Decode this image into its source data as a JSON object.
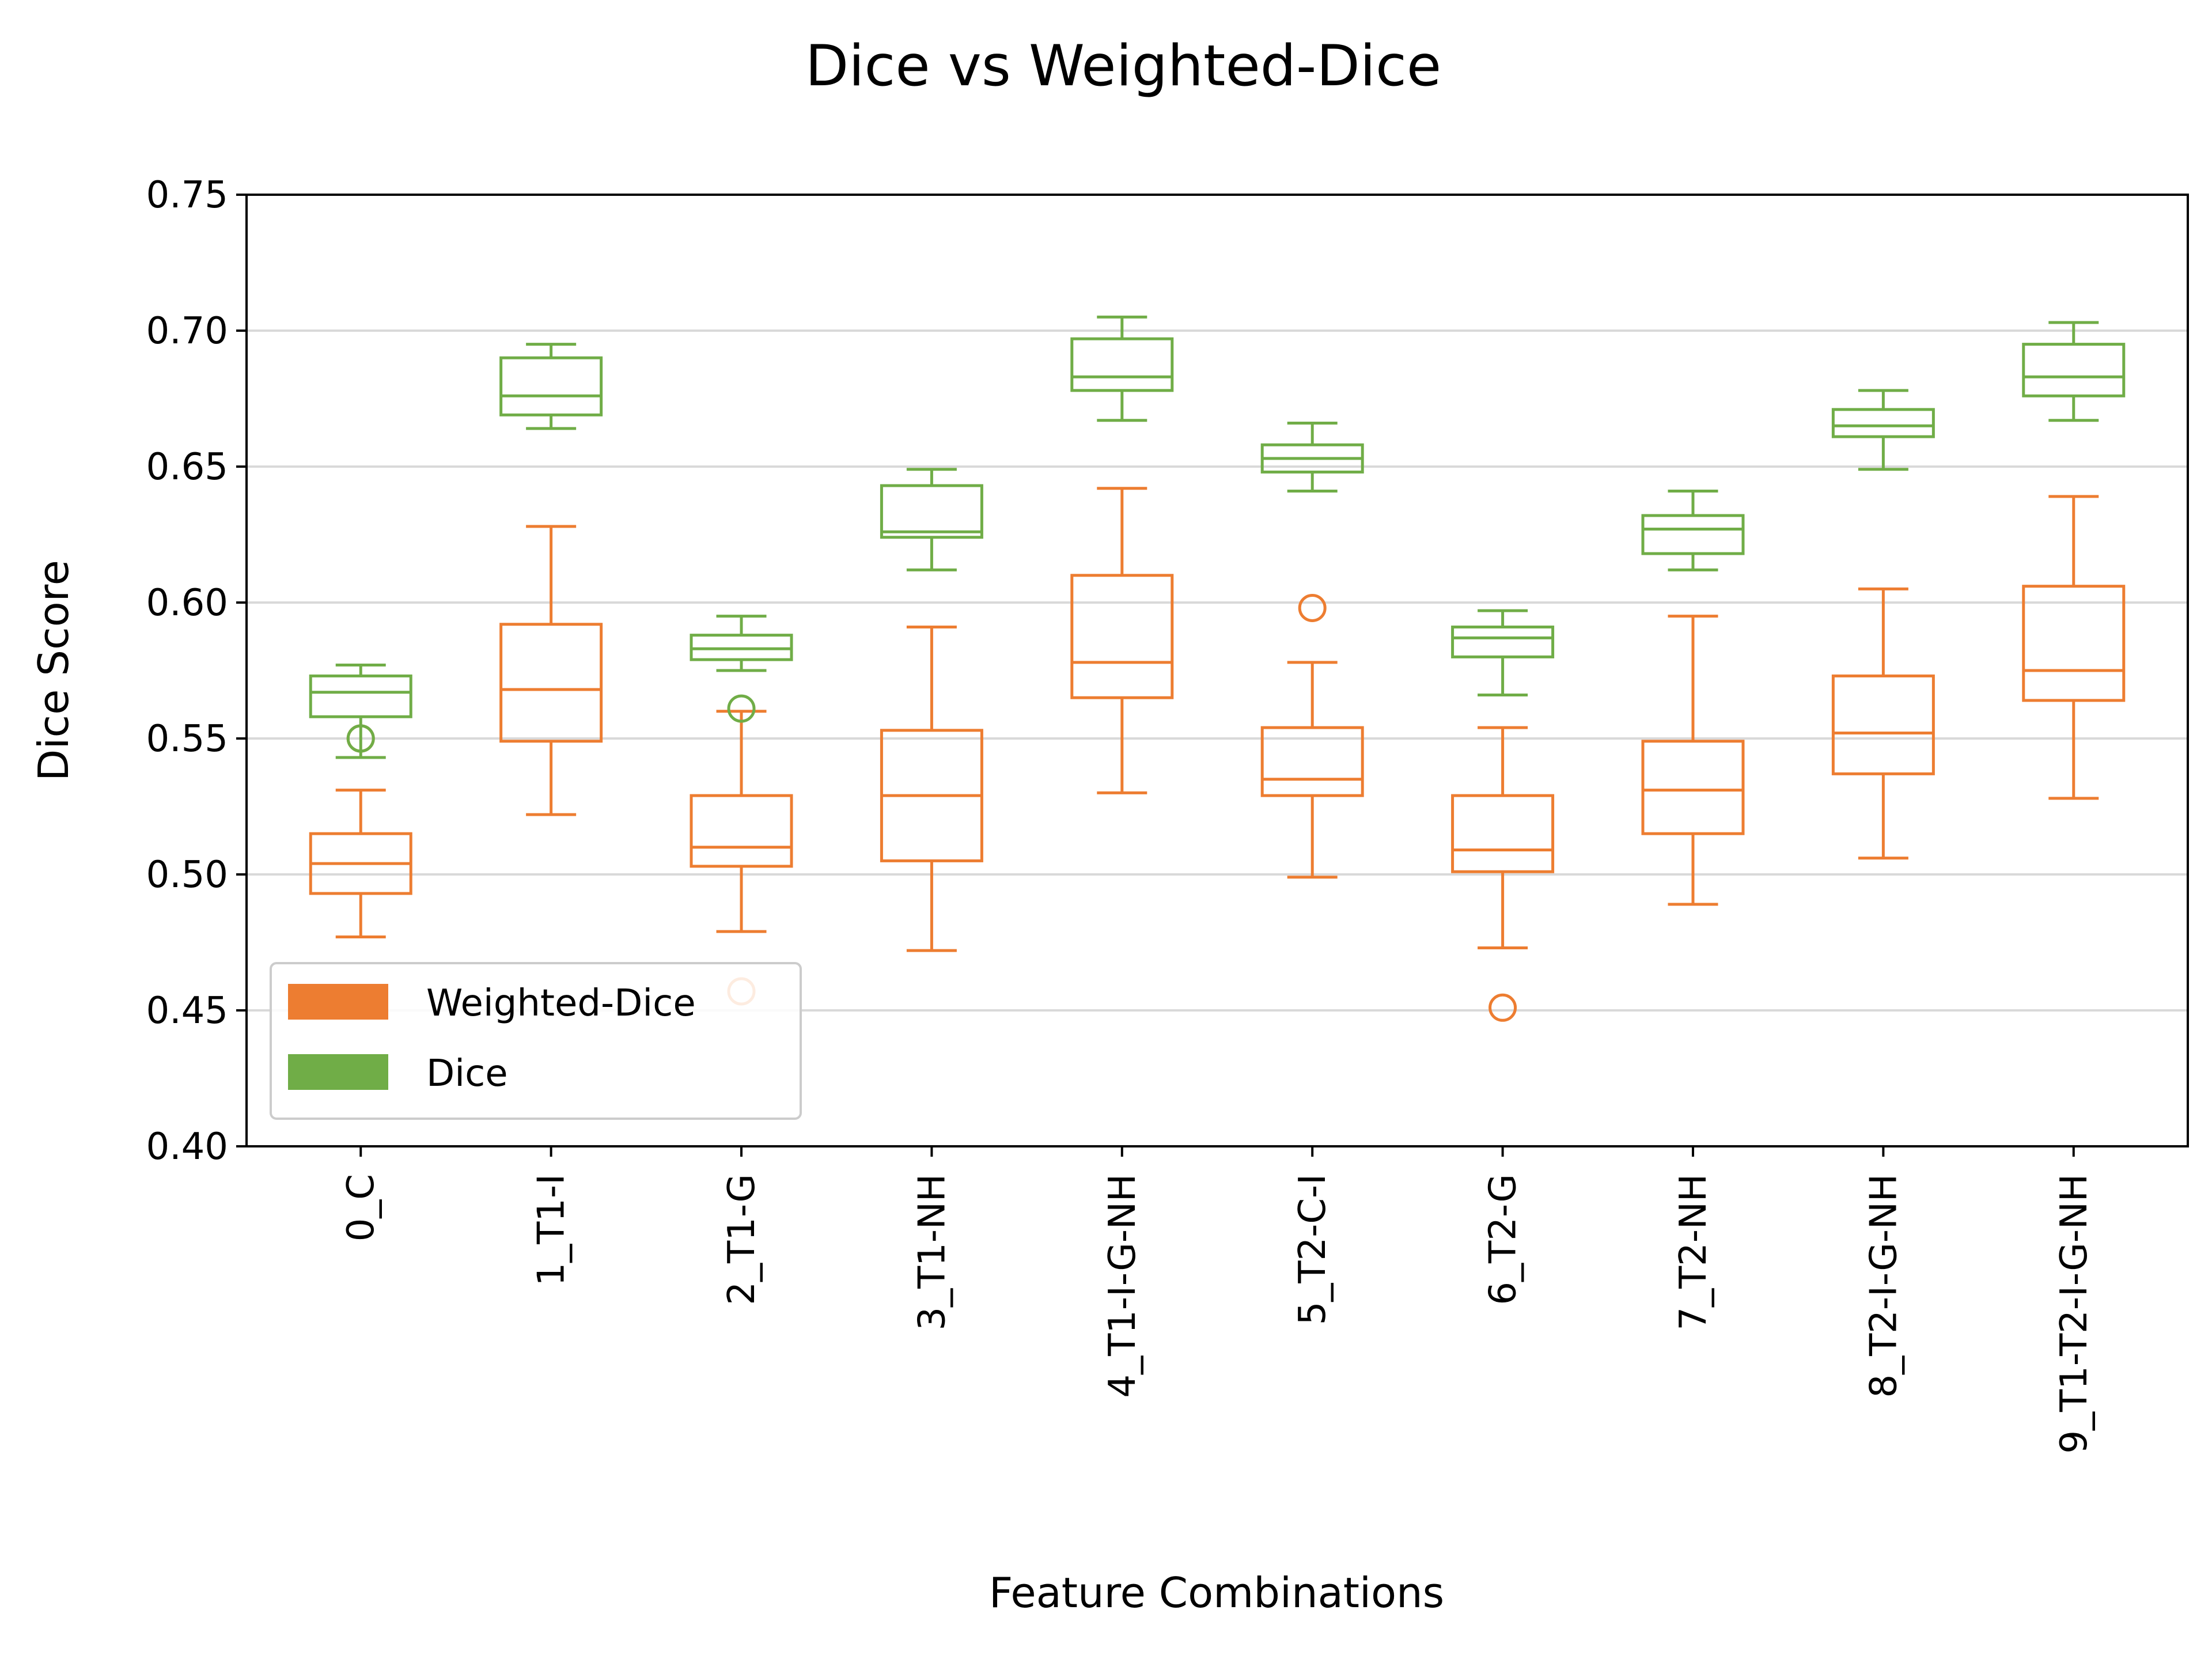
{
  "chart_data": {
    "type": "boxplot",
    "title": "Dice vs Weighted-Dice",
    "xlabel": "Feature Combinations",
    "ylabel": "Dice Score",
    "ylim": [
      0.4,
      0.75
    ],
    "yticks": [
      "0.40",
      "0.45",
      "0.50",
      "0.55",
      "0.60",
      "0.65",
      "0.70",
      "0.75"
    ],
    "grid": "horizontal",
    "legend_position": "lower-left",
    "categories": [
      "0_C",
      "1_T1-I",
      "2_T1-G",
      "3_T1-NH",
      "4_T1-I-G-NH",
      "5_T2-C-I",
      "6_T2-G",
      "7_T2-NH",
      "8_T2-I-G-NH",
      "9_T1-T2-I-G-NH"
    ],
    "series": [
      {
        "name": "Weighted-Dice",
        "color": "#ed7d31",
        "boxes": [
          {
            "whislo": 0.477,
            "q1": 0.493,
            "med": 0.504,
            "q3": 0.515,
            "whishi": 0.531,
            "fliers": [
              0.55
            ]
          },
          {
            "whislo": 0.522,
            "q1": 0.549,
            "med": 0.568,
            "q3": 0.592,
            "whishi": 0.628,
            "fliers": []
          },
          {
            "whislo": 0.479,
            "q1": 0.503,
            "med": 0.51,
            "q3": 0.529,
            "whishi": 0.56,
            "fliers": [
              0.457
            ]
          },
          {
            "whislo": 0.472,
            "q1": 0.505,
            "med": 0.529,
            "q3": 0.553,
            "whishi": 0.591,
            "fliers": []
          },
          {
            "whislo": 0.53,
            "q1": 0.565,
            "med": 0.578,
            "q3": 0.61,
            "whishi": 0.642,
            "fliers": []
          },
          {
            "whislo": 0.499,
            "q1": 0.529,
            "med": 0.535,
            "q3": 0.554,
            "whishi": 0.578,
            "fliers": [
              0.598
            ]
          },
          {
            "whislo": 0.473,
            "q1": 0.501,
            "med": 0.509,
            "q3": 0.529,
            "whishi": 0.554,
            "fliers": [
              0.451
            ]
          },
          {
            "whislo": 0.489,
            "q1": 0.515,
            "med": 0.531,
            "q3": 0.549,
            "whishi": 0.595,
            "fliers": []
          },
          {
            "whislo": 0.506,
            "q1": 0.537,
            "med": 0.552,
            "q3": 0.573,
            "whishi": 0.605,
            "fliers": []
          },
          {
            "whislo": 0.528,
            "q1": 0.564,
            "med": 0.575,
            "q3": 0.606,
            "whishi": 0.639,
            "fliers": []
          }
        ]
      },
      {
        "name": "Dice",
        "color": "#70ad47",
        "boxes": [
          {
            "whislo": 0.543,
            "q1": 0.558,
            "med": 0.567,
            "q3": 0.573,
            "whishi": 0.577,
            "fliers": [
              0.55
            ]
          },
          {
            "whislo": 0.664,
            "q1": 0.669,
            "med": 0.676,
            "q3": 0.69,
            "whishi": 0.695,
            "fliers": []
          },
          {
            "whislo": 0.575,
            "q1": 0.579,
            "med": 0.583,
            "q3": 0.588,
            "whishi": 0.595,
            "fliers": [
              0.561
            ]
          },
          {
            "whislo": 0.612,
            "q1": 0.624,
            "med": 0.626,
            "q3": 0.643,
            "whishi": 0.649,
            "fliers": []
          },
          {
            "whislo": 0.667,
            "q1": 0.678,
            "med": 0.683,
            "q3": 0.697,
            "whishi": 0.705,
            "fliers": []
          },
          {
            "whislo": 0.641,
            "q1": 0.648,
            "med": 0.653,
            "q3": 0.658,
            "whishi": 0.666,
            "fliers": []
          },
          {
            "whislo": 0.566,
            "q1": 0.58,
            "med": 0.587,
            "q3": 0.591,
            "whishi": 0.597,
            "fliers": []
          },
          {
            "whislo": 0.612,
            "q1": 0.618,
            "med": 0.627,
            "q3": 0.632,
            "whishi": 0.641,
            "fliers": []
          },
          {
            "whislo": 0.649,
            "q1": 0.661,
            "med": 0.665,
            "q3": 0.671,
            "whishi": 0.678,
            "fliers": []
          },
          {
            "whislo": 0.667,
            "q1": 0.676,
            "med": 0.683,
            "q3": 0.695,
            "whishi": 0.703,
            "fliers": []
          }
        ]
      }
    ]
  }
}
